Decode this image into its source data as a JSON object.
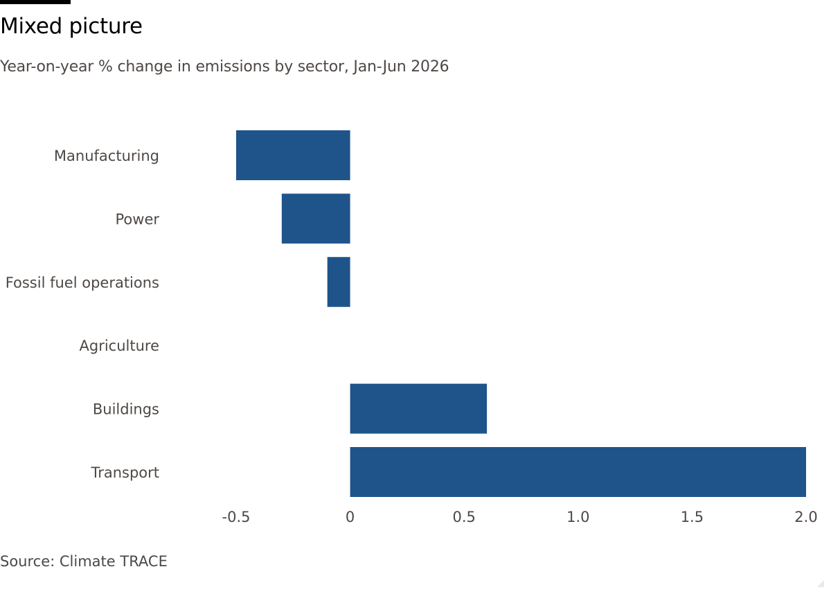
{
  "header": {
    "title": "Mixed picture",
    "subtitle": "Year-on-year % change in emissions by sector, Jan-Jun 2026"
  },
  "footer": {
    "source": "Source: Climate TRACE"
  },
  "colors": {
    "bar": "#1f548b",
    "text": "#4d4845",
    "title": "#000000"
  },
  "chart_data": {
    "type": "bar",
    "orientation": "horizontal",
    "title": "Mixed picture",
    "subtitle": "Year-on-year % change in emissions by sector, Jan-Jun 2026",
    "categories": [
      "Manufacturing",
      "Power",
      "Fossil fuel operations",
      "Agriculture",
      "Buildings",
      "Transport"
    ],
    "values": [
      -0.5,
      -0.3,
      -0.1,
      0.0,
      0.6,
      2.0
    ],
    "xlim": [
      -0.5,
      2.0
    ],
    "xticks": [
      -0.5,
      0,
      0.5,
      1.0,
      1.5,
      2.0
    ],
    "xtick_labels": [
      "-0.5",
      "0",
      "0.5",
      "1.0",
      "1.5",
      "2.0"
    ],
    "grid": false,
    "legend": "none",
    "source": "Source: Climate TRACE"
  }
}
